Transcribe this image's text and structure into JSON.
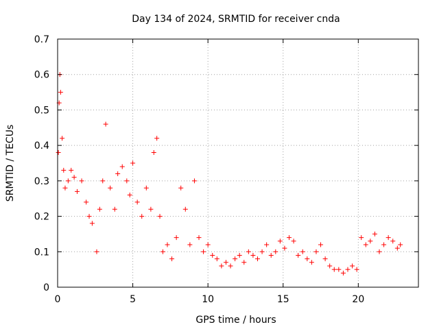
{
  "chart_data": {
    "type": "scatter",
    "title": "Day 134 of 2024, SRMTID for receiver cnda",
    "xlabel": "GPS time / hours",
    "ylabel": "SRMTID / TECUs",
    "xlim": [
      0,
      24
    ],
    "ylim": [
      0,
      0.7
    ],
    "xticks": [
      0,
      5,
      10,
      15,
      20
    ],
    "xtick_labels": [
      "0",
      "5",
      "10",
      "15",
      "20"
    ],
    "yticks": [
      0,
      0.1,
      0.2,
      0.3,
      0.4,
      0.5,
      0.6,
      0.7
    ],
    "ytick_labels": [
      "0",
      "0.1",
      "0.2",
      "0.3",
      "0.4",
      "0.5",
      "0.6",
      "0.7"
    ],
    "grid": true,
    "marker": "+",
    "series": [
      {
        "name": "cnda",
        "color": "#ff0000",
        "x": [
          0.05,
          0.1,
          0.15,
          0.2,
          0.3,
          0.4,
          0.5,
          0.7,
          0.9,
          1.1,
          1.3,
          1.6,
          1.9,
          2.1,
          2.3,
          2.6,
          2.8,
          3.0,
          3.2,
          3.5,
          3.8,
          4.0,
          4.3,
          4.6,
          4.8,
          5.0,
          5.3,
          5.6,
          5.9,
          6.2,
          6.4,
          6.6,
          6.8,
          7.0,
          7.3,
          7.6,
          7.9,
          8.2,
          8.5,
          8.8,
          9.1,
          9.4,
          9.7,
          10.0,
          10.3,
          10.6,
          10.9,
          11.2,
          11.5,
          11.8,
          12.1,
          12.4,
          12.7,
          13.0,
          13.3,
          13.6,
          13.9,
          14.2,
          14.5,
          14.8,
          15.1,
          15.4,
          15.7,
          16.0,
          16.3,
          16.6,
          16.9,
          17.2,
          17.5,
          17.8,
          18.1,
          18.4,
          18.7,
          19.0,
          19.3,
          19.6,
          19.9,
          20.2,
          20.5,
          20.8,
          21.1,
          21.4,
          21.7,
          22.0,
          22.3,
          22.6,
          22.8
        ],
        "y": [
          0.38,
          0.52,
          0.6,
          0.55,
          0.42,
          0.33,
          0.28,
          0.3,
          0.33,
          0.31,
          0.27,
          0.3,
          0.24,
          0.2,
          0.18,
          0.1,
          0.22,
          0.3,
          0.46,
          0.28,
          0.22,
          0.32,
          0.34,
          0.3,
          0.26,
          0.35,
          0.24,
          0.2,
          0.28,
          0.22,
          0.38,
          0.42,
          0.2,
          0.1,
          0.12,
          0.08,
          0.14,
          0.28,
          0.22,
          0.12,
          0.3,
          0.14,
          0.1,
          0.12,
          0.09,
          0.08,
          0.06,
          0.07,
          0.06,
          0.08,
          0.09,
          0.07,
          0.1,
          0.09,
          0.08,
          0.1,
          0.12,
          0.09,
          0.1,
          0.13,
          0.11,
          0.14,
          0.13,
          0.09,
          0.1,
          0.08,
          0.07,
          0.1,
          0.12,
          0.08,
          0.06,
          0.05,
          0.05,
          0.04,
          0.05,
          0.06,
          0.05,
          0.14,
          0.12,
          0.13,
          0.15,
          0.1,
          0.12,
          0.14,
          0.13,
          0.11,
          0.12
        ]
      }
    ]
  }
}
